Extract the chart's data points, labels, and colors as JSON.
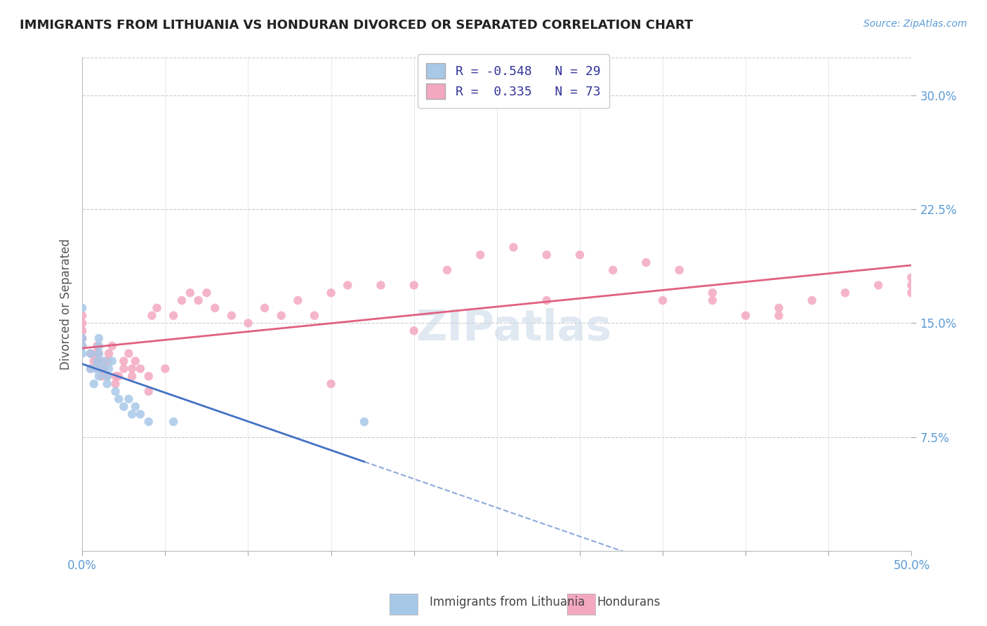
{
  "title": "IMMIGRANTS FROM LITHUANIA VS HONDURAN DIVORCED OR SEPARATED CORRELATION CHART",
  "source_text": "Source: ZipAtlas.com",
  "ylabel": "Divorced or Separated",
  "xmin": 0.0,
  "xmax": 0.5,
  "ymin": 0.0,
  "ymax": 0.325,
  "legend_R1": "-0.548",
  "legend_N1": "29",
  "legend_R2": "0.335",
  "legend_N2": "73",
  "color_blue": "#a8c8e8",
  "color_pink": "#f4a8c0",
  "color_blue_line": "#4472c4",
  "color_pink_line": "#e06080",
  "blue_scatter_x": [
    0.0,
    0.0,
    0.0,
    0.0,
    0.005,
    0.005,
    0.007,
    0.008,
    0.009,
    0.01,
    0.01,
    0.01,
    0.01,
    0.012,
    0.013,
    0.015,
    0.015,
    0.016,
    0.018,
    0.02,
    0.022,
    0.025,
    0.028,
    0.03,
    0.032,
    0.035,
    0.04,
    0.055,
    0.17
  ],
  "blue_scatter_y": [
    0.13,
    0.135,
    0.14,
    0.16,
    0.12,
    0.13,
    0.11,
    0.12,
    0.125,
    0.115,
    0.13,
    0.135,
    0.14,
    0.12,
    0.125,
    0.11,
    0.115,
    0.12,
    0.125,
    0.105,
    0.1,
    0.095,
    0.1,
    0.09,
    0.095,
    0.09,
    0.085,
    0.085,
    0.085
  ],
  "pink_scatter_x": [
    0.0,
    0.0,
    0.0,
    0.0,
    0.0,
    0.005,
    0.005,
    0.007,
    0.008,
    0.009,
    0.01,
    0.01,
    0.01,
    0.012,
    0.013,
    0.015,
    0.015,
    0.016,
    0.018,
    0.02,
    0.02,
    0.022,
    0.025,
    0.025,
    0.028,
    0.03,
    0.03,
    0.032,
    0.035,
    0.04,
    0.04,
    0.042,
    0.045,
    0.05,
    0.055,
    0.06,
    0.065,
    0.07,
    0.075,
    0.08,
    0.09,
    0.1,
    0.11,
    0.12,
    0.13,
    0.14,
    0.15,
    0.16,
    0.18,
    0.2,
    0.22,
    0.24,
    0.26,
    0.28,
    0.3,
    0.32,
    0.34,
    0.36,
    0.38,
    0.4,
    0.42,
    0.44,
    0.46,
    0.48,
    0.5,
    0.5,
    0.5,
    0.42,
    0.38,
    0.35,
    0.28,
    0.2,
    0.15
  ],
  "pink_scatter_y": [
    0.135,
    0.14,
    0.145,
    0.15,
    0.155,
    0.12,
    0.13,
    0.125,
    0.13,
    0.135,
    0.12,
    0.125,
    0.13,
    0.115,
    0.12,
    0.115,
    0.125,
    0.13,
    0.135,
    0.11,
    0.115,
    0.115,
    0.12,
    0.125,
    0.13,
    0.115,
    0.12,
    0.125,
    0.12,
    0.105,
    0.115,
    0.155,
    0.16,
    0.12,
    0.155,
    0.165,
    0.17,
    0.165,
    0.17,
    0.16,
    0.155,
    0.15,
    0.16,
    0.155,
    0.165,
    0.155,
    0.17,
    0.175,
    0.175,
    0.175,
    0.185,
    0.195,
    0.2,
    0.195,
    0.195,
    0.185,
    0.19,
    0.185,
    0.165,
    0.155,
    0.16,
    0.165,
    0.17,
    0.175,
    0.18,
    0.17,
    0.175,
    0.155,
    0.17,
    0.165,
    0.165,
    0.145,
    0.11
  ]
}
